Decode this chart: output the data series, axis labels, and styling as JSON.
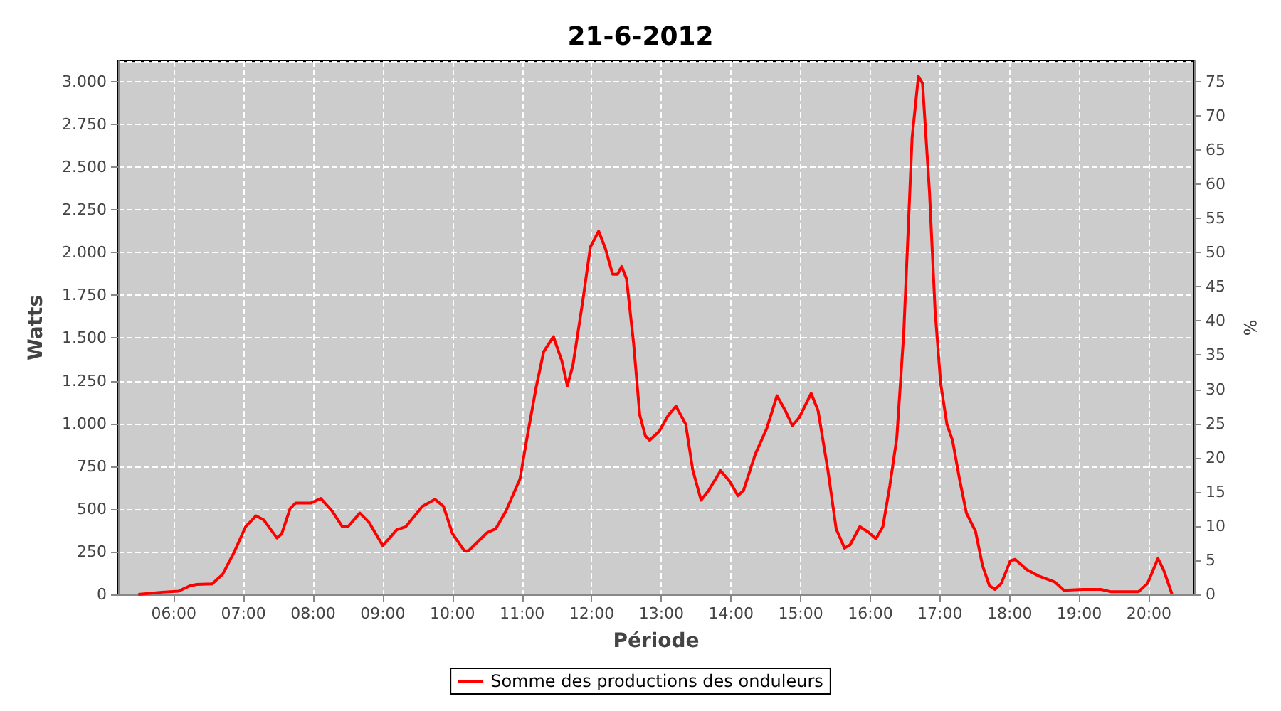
{
  "chart_data": {
    "type": "line",
    "title": "21-6-2012",
    "xlabel": "Période",
    "ylabel": "Watts",
    "y2label": "%",
    "xlim": [
      5.2,
      20.65
    ],
    "xticks": [
      {
        "value": 6,
        "label": "06:00"
      },
      {
        "value": 7,
        "label": "07:00"
      },
      {
        "value": 8,
        "label": "08:00"
      },
      {
        "value": 9,
        "label": "09:00"
      },
      {
        "value": 10,
        "label": "10:00"
      },
      {
        "value": 11,
        "label": "11:00"
      },
      {
        "value": 12,
        "label": "12:00"
      },
      {
        "value": 13,
        "label": "13:00"
      },
      {
        "value": 14,
        "label": "14:00"
      },
      {
        "value": 15,
        "label": "15:00"
      },
      {
        "value": 16,
        "label": "16:00"
      },
      {
        "value": 17,
        "label": "17:00"
      },
      {
        "value": 18,
        "label": "18:00"
      },
      {
        "value": 19,
        "label": "19:00"
      },
      {
        "value": 20,
        "label": "20:00"
      }
    ],
    "ylim": [
      0,
      3120
    ],
    "yticks": [
      0,
      250,
      500,
      750,
      {
        "value": 1000,
        "label": "1.000"
      },
      {
        "value": 1250,
        "label": "1.250"
      },
      {
        "value": 1500,
        "label": "1.500"
      },
      {
        "value": 1750,
        "label": "1.750"
      },
      {
        "value": 2000,
        "label": "2.000"
      },
      {
        "value": 2250,
        "label": "2.250"
      },
      {
        "value": 2500,
        "label": "2.500"
      },
      {
        "value": 2750,
        "label": "2.750"
      },
      {
        "value": 3000,
        "label": "3.000"
      }
    ],
    "y2lim": [
      0,
      78
    ],
    "y2ticks": [
      0,
      5,
      10,
      15,
      20,
      25,
      30,
      35,
      40,
      45,
      50,
      55,
      60,
      65,
      70,
      75
    ],
    "grid": true,
    "legend": "bottom",
    "marker": "none",
    "line_style": "solid",
    "series": [
      {
        "name": "Somme des productions des onduleurs",
        "color": "#ff0000",
        "x": [
          5.49,
          5.83,
          6.07,
          6.23,
          6.33,
          6.55,
          6.7,
          6.87,
          7.03,
          7.18,
          7.29,
          7.48,
          7.55,
          7.67,
          7.75,
          7.97,
          8.11,
          8.27,
          8.42,
          8.5,
          8.67,
          8.8,
          9.0,
          9.2,
          9.33,
          9.57,
          9.75,
          9.87,
          10.0,
          10.17,
          10.23,
          10.5,
          10.62,
          10.77,
          10.97,
          11.07,
          11.2,
          11.31,
          11.45,
          11.57,
          11.65,
          11.73,
          11.87,
          11.98,
          12.1,
          12.2,
          12.3,
          12.37,
          12.43,
          12.5,
          12.6,
          12.69,
          12.77,
          12.83,
          12.97,
          13.1,
          13.21,
          13.35,
          13.45,
          13.57,
          13.68,
          13.85,
          13.98,
          14.1,
          14.18,
          14.35,
          14.51,
          14.66,
          14.78,
          14.88,
          14.98,
          15.15,
          15.25,
          15.39,
          15.51,
          15.63,
          15.71,
          15.85,
          15.98,
          16.08,
          16.18,
          16.28,
          16.38,
          16.48,
          16.55,
          16.6,
          16.69,
          16.75,
          16.85,
          16.93,
          17.01,
          17.1,
          17.18,
          17.28,
          17.38,
          17.51,
          17.61,
          17.71,
          17.79,
          17.88,
          18.01,
          18.08,
          18.25,
          18.41,
          18.65,
          18.78,
          19.05,
          19.31,
          19.45,
          19.85,
          19.98,
          20.13,
          20.21,
          20.33
        ],
        "values": [
          0,
          13,
          19,
          50,
          58,
          61,
          117,
          250,
          396,
          460,
          436,
          330,
          356,
          503,
          535,
          535,
          561,
          489,
          396,
          396,
          476,
          423,
          285,
          378,
          396,
          516,
          556,
          516,
          356,
          255,
          255,
          362,
          383,
          489,
          676,
          915,
          1208,
          1420,
          1508,
          1367,
          1221,
          1341,
          1713,
          2032,
          2125,
          2019,
          1873,
          1873,
          1918,
          1846,
          1474,
          1048,
          928,
          902,
          955,
          1048,
          1101,
          995,
          729,
          551,
          609,
          724,
          662,
          577,
          609,
          822,
          968,
          1162,
          1075,
          987,
          1035,
          1176,
          1075,
          729,
          383,
          271,
          290,
          396,
          362,
          325,
          396,
          636,
          915,
          1527,
          2192,
          2671,
          3030,
          2990,
          2351,
          1660,
          1234,
          995,
          902,
          676,
          476,
          370,
          170,
          51,
          29,
          64,
          197,
          205,
          144,
          109,
          72,
          24,
          29,
          29,
          16,
          16,
          64,
          210,
          144,
          3
        ]
      }
    ]
  }
}
